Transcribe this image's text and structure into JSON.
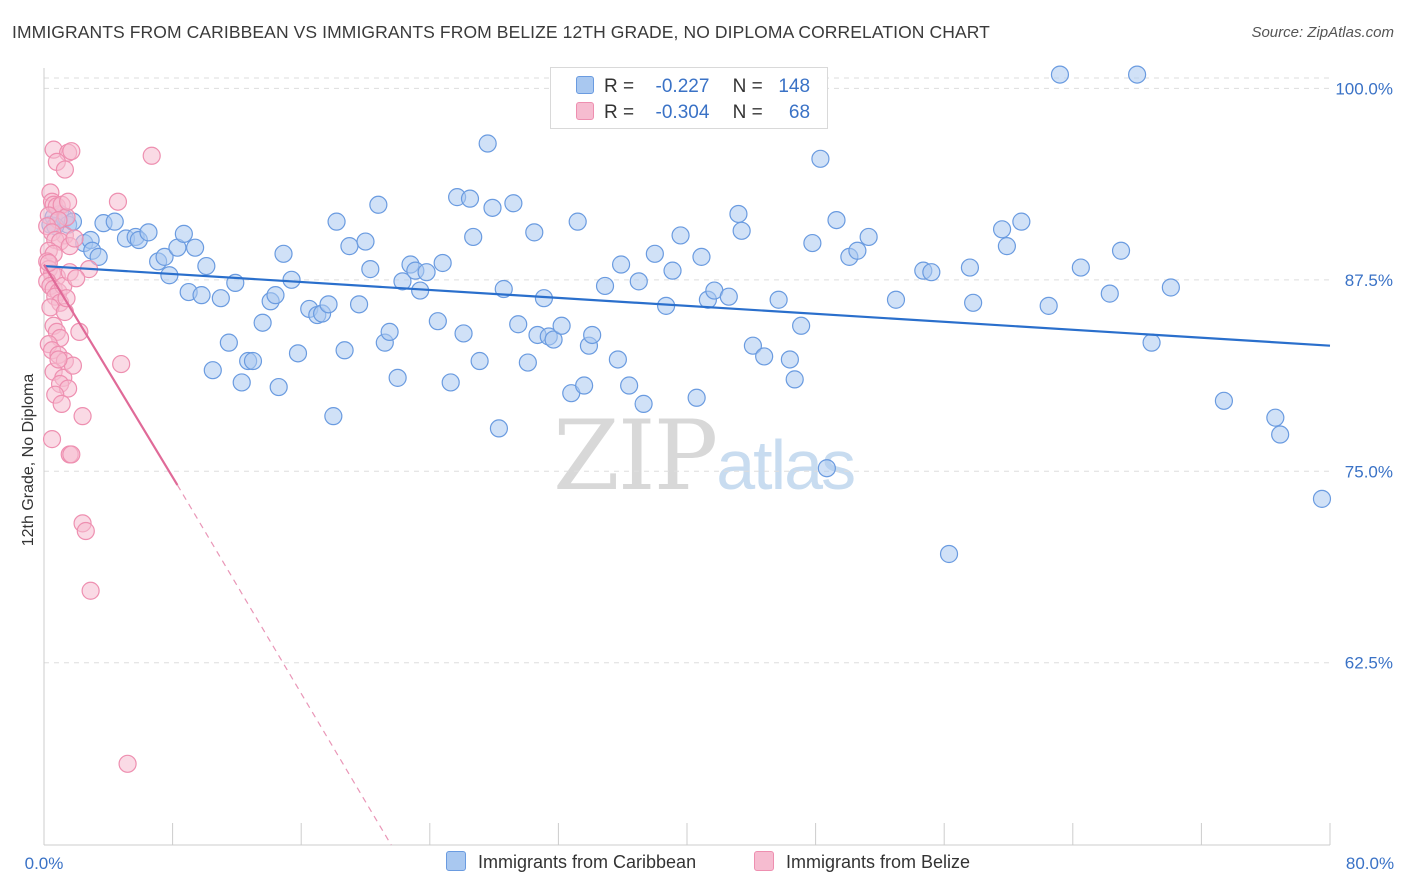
{
  "header": {
    "title": "IMMIGRANTS FROM CARIBBEAN VS IMMIGRANTS FROM BELIZE 12TH GRADE, NO DIPLOMA CORRELATION CHART",
    "source": "Source: ZipAtlas.com"
  },
  "watermark": {
    "zip": "ZIP",
    "atlas": "atlas"
  },
  "legend_top": {
    "r_label": "R =",
    "n_label": "N =",
    "rows": [
      {
        "r": "-0.227",
        "n": "148"
      },
      {
        "r": "-0.304",
        "n": "68"
      }
    ]
  },
  "colors": {
    "caribbean_fill": "#a9c8f0",
    "caribbean_stroke": "#6a9be0",
    "caribbean_line": "#2a6fcc",
    "belize_fill": "#f6bcd0",
    "belize_stroke": "#ee8fb0",
    "belize_line": "#e06a98",
    "tick_label": "#3a72c6",
    "grid": "#dddddd"
  },
  "chart_data": {
    "type": "scatter",
    "title": "IMMIGRANTS FROM CARIBBEAN VS IMMIGRANTS FROM BELIZE 12TH GRADE, NO DIPLOMA CORRELATION CHART",
    "ylabel": "12th Grade, No Diploma",
    "xlim": [
      0,
      80
    ],
    "ylim": [
      50.6,
      101.2
    ],
    "x_tick_labels": [
      "0.0%",
      "80.0%"
    ],
    "y_ticks": [
      {
        "value": 100.0,
        "label": "100.0%"
      },
      {
        "value": 87.5,
        "label": "87.5%"
      },
      {
        "value": 75.0,
        "label": "75.0%"
      },
      {
        "value": 62.5,
        "label": "62.5%"
      }
    ],
    "grid": true,
    "legend_position": "bottom",
    "series": [
      {
        "name": "Immigrants from Caribbean",
        "r": -0.227,
        "n": 148,
        "trend": {
          "x": [
            0,
            80
          ],
          "y": [
            88.4,
            83.2
          ]
        },
        "points": [
          [
            0.4,
            91.1
          ],
          [
            0.6,
            91.6
          ],
          [
            1.0,
            91.8
          ],
          [
            1.3,
            91.5
          ],
          [
            1.5,
            91.1
          ],
          [
            0.7,
            91.0
          ],
          [
            1.8,
            91.3
          ],
          [
            2.5,
            89.9
          ],
          [
            2.9,
            90.1
          ],
          [
            3.0,
            89.4
          ],
          [
            3.4,
            89.0
          ],
          [
            3.7,
            91.2
          ],
          [
            4.4,
            91.3
          ],
          [
            5.1,
            90.2
          ],
          [
            5.7,
            90.3
          ],
          [
            5.9,
            90.1
          ],
          [
            6.5,
            90.6
          ],
          [
            7.1,
            88.7
          ],
          [
            7.5,
            89.0
          ],
          [
            7.8,
            87.8
          ],
          [
            8.3,
            89.6
          ],
          [
            8.7,
            90.5
          ],
          [
            9.0,
            86.7
          ],
          [
            9.4,
            89.6
          ],
          [
            9.8,
            86.5
          ],
          [
            10.1,
            88.4
          ],
          [
            10.5,
            81.6
          ],
          [
            11.0,
            86.3
          ],
          [
            11.5,
            83.4
          ],
          [
            11.9,
            87.3
          ],
          [
            12.3,
            80.8
          ],
          [
            12.7,
            82.2
          ],
          [
            13.0,
            82.2
          ],
          [
            13.6,
            84.7
          ],
          [
            14.1,
            86.1
          ],
          [
            14.4,
            86.5
          ],
          [
            14.6,
            80.5
          ],
          [
            14.9,
            89.2
          ],
          [
            15.4,
            87.5
          ],
          [
            15.8,
            82.7
          ],
          [
            16.5,
            85.6
          ],
          [
            17.0,
            85.2
          ],
          [
            17.3,
            85.3
          ],
          [
            17.7,
            85.9
          ],
          [
            18.0,
            78.6
          ],
          [
            18.2,
            91.3
          ],
          [
            18.7,
            82.9
          ],
          [
            19.0,
            89.7
          ],
          [
            19.6,
            85.9
          ],
          [
            20.0,
            90.0
          ],
          [
            20.3,
            88.2
          ],
          [
            20.8,
            92.4
          ],
          [
            21.2,
            83.4
          ],
          [
            21.5,
            84.1
          ],
          [
            22.0,
            81.1
          ],
          [
            22.3,
            87.4
          ],
          [
            22.8,
            88.5
          ],
          [
            23.1,
            88.1
          ],
          [
            23.4,
            86.8
          ],
          [
            23.8,
            88.0
          ],
          [
            24.5,
            84.8
          ],
          [
            24.8,
            88.6
          ],
          [
            25.3,
            80.8
          ],
          [
            25.7,
            92.9
          ],
          [
            26.1,
            84.0
          ],
          [
            26.5,
            92.8
          ],
          [
            26.7,
            90.3
          ],
          [
            27.1,
            82.2
          ],
          [
            27.6,
            96.4
          ],
          [
            27.9,
            92.2
          ],
          [
            28.3,
            77.8
          ],
          [
            28.6,
            86.9
          ],
          [
            29.2,
            92.5
          ],
          [
            29.5,
            84.6
          ],
          [
            30.1,
            82.1
          ],
          [
            30.5,
            90.6
          ],
          [
            30.7,
            83.9
          ],
          [
            31.1,
            86.3
          ],
          [
            31.4,
            83.8
          ],
          [
            31.7,
            83.6
          ],
          [
            32.2,
            84.5
          ],
          [
            32.8,
            80.1
          ],
          [
            33.2,
            91.3
          ],
          [
            33.6,
            80.6
          ],
          [
            33.9,
            83.2
          ],
          [
            34.1,
            83.9
          ],
          [
            34.9,
            87.1
          ],
          [
            35.7,
            82.3
          ],
          [
            35.9,
            88.5
          ],
          [
            36.4,
            80.6
          ],
          [
            37.0,
            87.4
          ],
          [
            37.3,
            79.4
          ],
          [
            38.0,
            89.2
          ],
          [
            38.7,
            85.8
          ],
          [
            39.1,
            88.1
          ],
          [
            39.6,
            90.4
          ],
          [
            40.6,
            79.8
          ],
          [
            40.9,
            89.0
          ],
          [
            41.3,
            86.2
          ],
          [
            41.7,
            86.8
          ],
          [
            42.6,
            86.4
          ],
          [
            43.2,
            91.8
          ],
          [
            43.4,
            90.7
          ],
          [
            44.1,
            83.2
          ],
          [
            44.8,
            82.5
          ],
          [
            45.7,
            86.2
          ],
          [
            46.4,
            82.3
          ],
          [
            46.7,
            81.0
          ],
          [
            47.1,
            84.5
          ],
          [
            47.8,
            89.9
          ],
          [
            48.3,
            95.4
          ],
          [
            48.7,
            75.2
          ],
          [
            49.3,
            91.4
          ],
          [
            50.1,
            89.0
          ],
          [
            50.6,
            89.4
          ],
          [
            51.3,
            90.3
          ],
          [
            53.0,
            86.2
          ],
          [
            54.7,
            88.1
          ],
          [
            55.2,
            88.0
          ],
          [
            56.3,
            69.6
          ],
          [
            57.6,
            88.3
          ],
          [
            57.8,
            86.0
          ],
          [
            59.6,
            90.8
          ],
          [
            59.9,
            89.7
          ],
          [
            60.8,
            91.3
          ],
          [
            62.5,
            85.8
          ],
          [
            63.2,
            100.9
          ],
          [
            64.5,
            88.3
          ],
          [
            66.3,
            86.6
          ],
          [
            67.0,
            89.4
          ],
          [
            68.0,
            100.9
          ],
          [
            68.9,
            83.4
          ],
          [
            70.1,
            87.0
          ],
          [
            73.4,
            79.6
          ],
          [
            76.6,
            78.5
          ],
          [
            76.9,
            77.4
          ],
          [
            79.5,
            73.2
          ]
        ]
      },
      {
        "name": "Immigrants from Belize",
        "r": -0.304,
        "n": 68,
        "trend": {
          "x": [
            0,
            8.3
          ],
          "y": [
            88.5,
            74.1
          ]
        },
        "trend_dashed": {
          "x": [
            8.3,
            21.6
          ],
          "y": [
            74.1,
            50.6
          ]
        },
        "points": [
          [
            0.4,
            93.2
          ],
          [
            0.5,
            92.6
          ],
          [
            0.6,
            92.4
          ],
          [
            0.8,
            92.3
          ],
          [
            1.1,
            92.4
          ],
          [
            1.3,
            90.4
          ],
          [
            1.4,
            91.6
          ],
          [
            0.3,
            91.7
          ],
          [
            0.9,
            91.4
          ],
          [
            0.2,
            91.0
          ],
          [
            0.5,
            90.6
          ],
          [
            0.7,
            90.1
          ],
          [
            1.0,
            90.0
          ],
          [
            1.6,
            89.7
          ],
          [
            1.9,
            90.2
          ],
          [
            0.3,
            89.4
          ],
          [
            0.6,
            89.2
          ],
          [
            0.2,
            88.7
          ],
          [
            0.3,
            88.2
          ],
          [
            0.5,
            87.9
          ],
          [
            0.8,
            87.7
          ],
          [
            0.2,
            87.4
          ],
          [
            0.4,
            87.1
          ],
          [
            0.6,
            86.9
          ],
          [
            0.9,
            86.7
          ],
          [
            1.2,
            87.1
          ],
          [
            0.7,
            86.4
          ],
          [
            1.0,
            86.0
          ],
          [
            0.4,
            85.7
          ],
          [
            1.3,
            85.4
          ],
          [
            0.6,
            84.5
          ],
          [
            0.8,
            84.1
          ],
          [
            1.0,
            83.7
          ],
          [
            0.3,
            83.3
          ],
          [
            0.5,
            82.9
          ],
          [
            0.9,
            82.6
          ],
          [
            1.3,
            82.2
          ],
          [
            0.6,
            81.5
          ],
          [
            1.2,
            81.1
          ],
          [
            1.8,
            81.9
          ],
          [
            1.0,
            80.7
          ],
          [
            1.5,
            80.4
          ],
          [
            0.7,
            80.0
          ],
          [
            2.4,
            78.6
          ],
          [
            0.5,
            77.1
          ],
          [
            1.6,
            76.1
          ],
          [
            1.7,
            76.1
          ],
          [
            2.4,
            71.6
          ],
          [
            2.6,
            71.1
          ],
          [
            2.9,
            67.2
          ],
          [
            5.2,
            55.9
          ],
          [
            0.6,
            96.0
          ],
          [
            1.5,
            95.8
          ],
          [
            1.7,
            95.9
          ],
          [
            0.8,
            95.2
          ],
          [
            1.3,
            94.7
          ],
          [
            6.7,
            95.6
          ],
          [
            1.5,
            92.6
          ],
          [
            4.6,
            92.6
          ],
          [
            2.8,
            88.2
          ],
          [
            1.6,
            88.0
          ],
          [
            0.3,
            88.6
          ],
          [
            2.0,
            87.6
          ],
          [
            1.4,
            86.3
          ],
          [
            4.8,
            82.0
          ],
          [
            2.2,
            84.1
          ],
          [
            1.1,
            79.4
          ],
          [
            0.9,
            82.3
          ]
        ]
      }
    ]
  },
  "bottom_legend": [
    {
      "label": "Immigrants from Caribbean"
    },
    {
      "label": "Immigrants from Belize"
    }
  ]
}
